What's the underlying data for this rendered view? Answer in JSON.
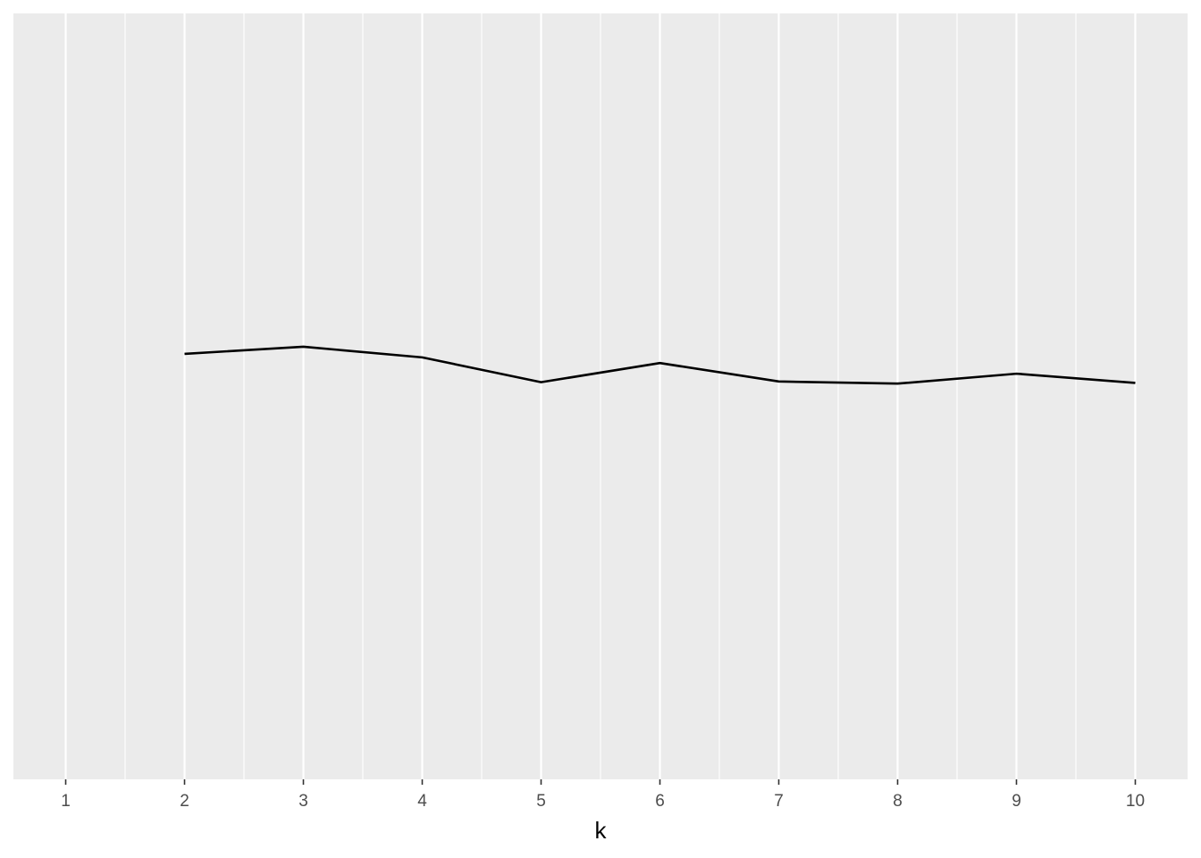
{
  "chart_data": {
    "type": "line",
    "title": "",
    "xlabel": "k",
    "ylabel": "",
    "x": [
      2,
      3,
      4,
      5,
      6,
      7,
      8,
      9,
      10
    ],
    "values": [
      0.6,
      0.61,
      0.595,
      0.56,
      0.587,
      0.561,
      0.558,
      0.572,
      0.559
    ],
    "x_ticks": [
      1,
      2,
      3,
      4,
      5,
      6,
      7,
      8,
      9,
      10
    ],
    "x_tick_labels": [
      "1",
      "2",
      "3",
      "4",
      "5",
      "6",
      "7",
      "8",
      "9",
      "10"
    ],
    "xlim": [
      0.56,
      10.44
    ],
    "ylim": [
      0,
      1.08
    ],
    "grid": true,
    "y_axis_visible": false,
    "legend": "none",
    "colors": {
      "panel_background": "#ebebeb",
      "gridline": "#ffffff",
      "line": "#000000",
      "tick_label": "#4d4d4d",
      "tick_mark": "#333333",
      "axis_title": "#000000"
    }
  }
}
